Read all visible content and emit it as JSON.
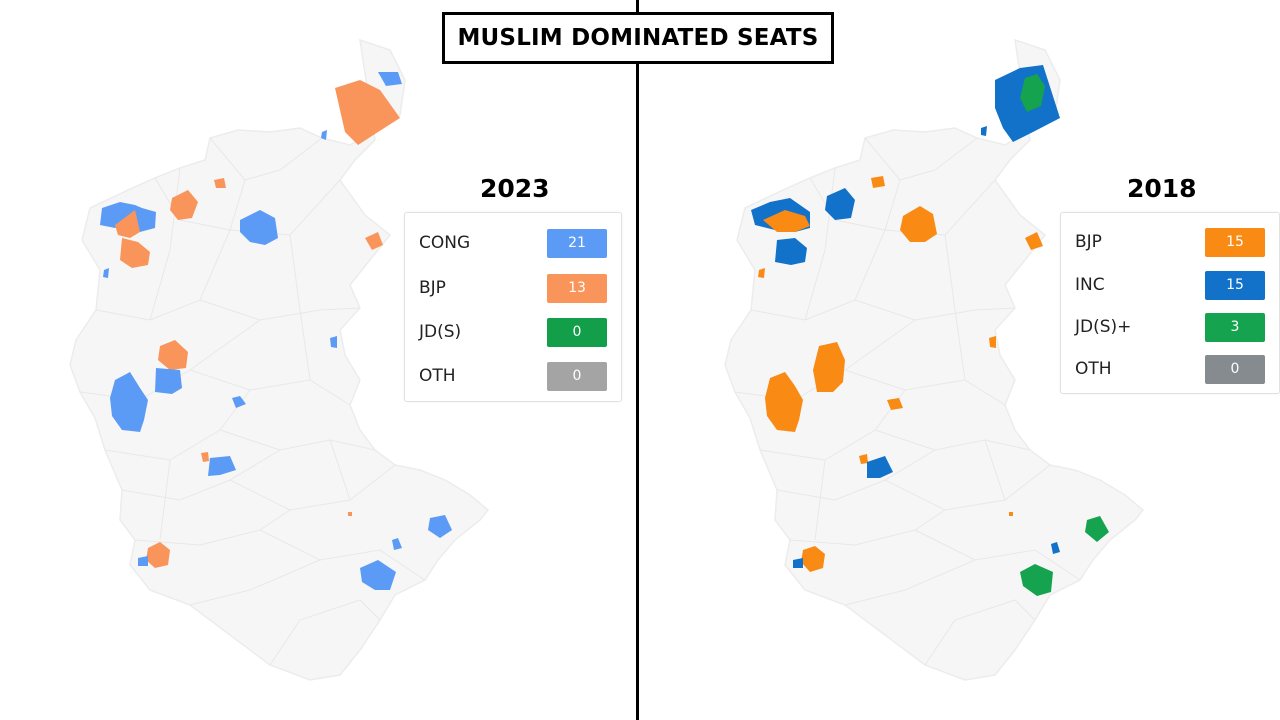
{
  "title": "MUSLIM DOMINATED SEATS",
  "panels": [
    {
      "year": "2023",
      "legend": [
        {
          "label": "CONG",
          "count": "21",
          "color": "#5b9bf5"
        },
        {
          "label": "BJP",
          "count": "13",
          "color": "#f9955a"
        },
        {
          "label": "JD(S)",
          "count": "0",
          "color": "#139e4a"
        },
        {
          "label": "OTH",
          "count": "0",
          "color": "#a4a4a4"
        }
      ]
    },
    {
      "year": "2018",
      "legend": [
        {
          "label": "BJP",
          "count": "15",
          "color": "#f98a14"
        },
        {
          "label": "INC",
          "count": "15",
          "color": "#1271c9"
        },
        {
          "label": "JD(S)+",
          "count": "3",
          "color": "#16a34f"
        },
        {
          "label": "OTH",
          "count": "0",
          "color": "#868b8f"
        }
      ]
    }
  ]
}
